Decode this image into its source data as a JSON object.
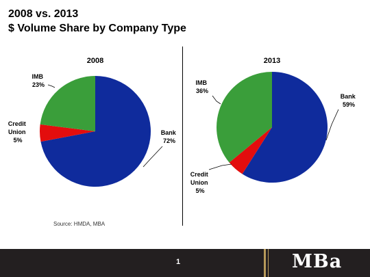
{
  "title": {
    "line1": "2008 vs. 2013",
    "line2": "$ Volume Share by Company Type"
  },
  "source": "Source: HMDA, MBA",
  "footer": {
    "page_number": "1",
    "logo": "MBa"
  },
  "colors": {
    "bank": "#0f2b9c",
    "credit_union": "#e30d0d",
    "imb": "#3a9e3a"
  },
  "chart_data": [
    {
      "type": "pie",
      "title": "2008",
      "slices": [
        {
          "name": "Bank",
          "value": 72,
          "label": "72%",
          "color": "#0f2b9c"
        },
        {
          "name": "Credit Union",
          "value": 5,
          "label": "5%",
          "color": "#e30d0d"
        },
        {
          "name": "IMB",
          "value": 23,
          "label": "23%",
          "color": "#3a9e3a"
        }
      ]
    },
    {
      "type": "pie",
      "title": "2013",
      "slices": [
        {
          "name": "Bank",
          "value": 59,
          "label": "59%",
          "color": "#0f2b9c"
        },
        {
          "name": "Credit Union",
          "value": 5,
          "label": "5%",
          "color": "#e30d0d"
        },
        {
          "name": "IMB",
          "value": 36,
          "label": "36%",
          "color": "#3a9e3a"
        }
      ]
    }
  ]
}
